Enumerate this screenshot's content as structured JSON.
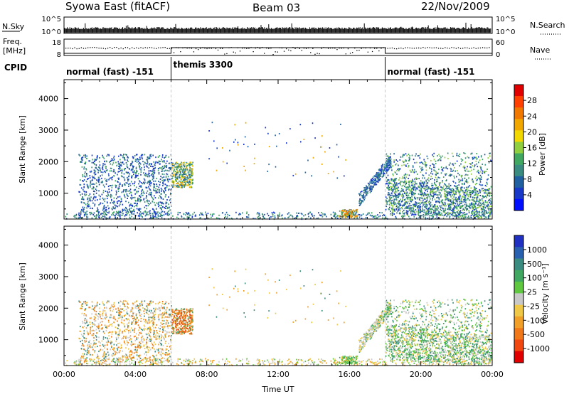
{
  "header": {
    "station": "Syowa East (fitACF)",
    "beam": "Beam 03",
    "date": "22/Nov/2009"
  },
  "top_panels": {
    "nsky_label": "N.Sky",
    "nsky_ticks": [
      "10^5",
      "10^0"
    ],
    "nsearch_label": "N.Search",
    "freq_label_1": "Freq.",
    "freq_label_2": "[MHz]",
    "freq_ticks": [
      "18",
      "8"
    ],
    "nave_ticks": [
      "60",
      "0"
    ],
    "nave_label": "Nave",
    "cpid_label": "CPID",
    "cpid_segments": [
      {
        "label": "normal (fast) -151",
        "start_hour": 0,
        "end_hour": 6
      },
      {
        "label": "themis 3300",
        "start_hour": 6,
        "end_hour": 18
      },
      {
        "label": "normal (fast) -151",
        "start_hour": 18,
        "end_hour": 24
      }
    ]
  },
  "chart_data": [
    {
      "type": "heatmap",
      "name": "Power",
      "ylabel": "Slant Range [km]",
      "y_ticks": [
        1000,
        2000,
        3000,
        4000
      ],
      "ylim": [
        180,
        4600
      ],
      "xlim_hours": [
        0,
        24
      ],
      "x_tick_labels": [
        "00:00",
        "04:00",
        "08:00",
        "12:00",
        "16:00",
        "20:00",
        "00:00"
      ],
      "colorbar": {
        "label": "Power [dB]",
        "ticks": [
          "28",
          "24",
          "20",
          "16",
          "12",
          "8",
          "4"
        ],
        "colors": [
          "#e00000",
          "#ff4000",
          "#f07800",
          "#f0a800",
          "#f0d800",
          "#90d040",
          "#40a860",
          "#3a8c80",
          "#2060a0",
          "#1838c8",
          "#0010ff"
        ]
      }
    },
    {
      "type": "heatmap",
      "name": "Velocity",
      "ylabel": "Slant Range [km]",
      "xlabel": "Time UT",
      "y_ticks": [
        1000,
        2000,
        3000,
        4000
      ],
      "ylim": [
        180,
        4600
      ],
      "xlim_hours": [
        0,
        24
      ],
      "x_tick_labels": [
        "00:00",
        "04:00",
        "08:00",
        "12:00",
        "16:00",
        "20:00",
        "00:00"
      ],
      "colorbar": {
        "label": "Velocity [m s⁻¹]",
        "ticks": [
          "1000",
          "500",
          "100",
          "25",
          "-25",
          "-100",
          "-500",
          "-1000"
        ],
        "colors": [
          "#2030c0",
          "#2a60b0",
          "#3a8c80",
          "#40a860",
          "#60c840",
          "#c8c8c8",
          "#f0c848",
          "#f0a028",
          "#f07818",
          "#f04810",
          "#e00000"
        ]
      }
    }
  ]
}
